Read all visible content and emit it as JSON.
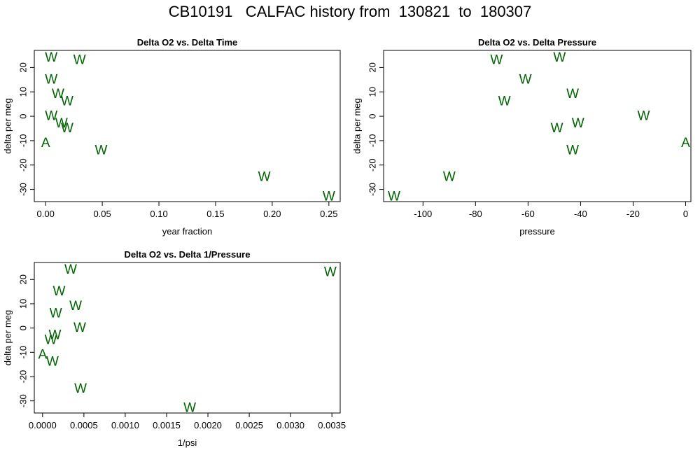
{
  "title": "CB10191   CALFAC history from  130821  to  180307",
  "colors": {
    "marker": "#006400",
    "axis": "#000000"
  },
  "chart_data": [
    {
      "type": "scatter",
      "title": "Delta O2 vs. Delta Time",
      "xlabel": "year fraction",
      "ylabel": "delta per meg",
      "xlim": [
        -0.01,
        0.26
      ],
      "ylim": [
        -35,
        27
      ],
      "xticks": [
        0.0,
        0.05,
        0.1,
        0.15,
        0.2,
        0.25
      ],
      "xtick_labels": [
        "0.00",
        "0.05",
        "0.10",
        "0.15",
        "0.20",
        "0.25"
      ],
      "yticks": [
        -30,
        -20,
        -10,
        0,
        10,
        20
      ],
      "ytick_labels": [
        "-30",
        "-20",
        "-10",
        "0",
        "10",
        "20"
      ],
      "points": [
        {
          "x": 0.0,
          "y": -11,
          "label": "A"
        },
        {
          "x": 0.005,
          "y": 24,
          "label": "W"
        },
        {
          "x": 0.03,
          "y": 23,
          "label": "W"
        },
        {
          "x": 0.005,
          "y": 15,
          "label": "W"
        },
        {
          "x": 0.011,
          "y": 9,
          "label": "W"
        },
        {
          "x": 0.019,
          "y": 6,
          "label": "W"
        },
        {
          "x": 0.005,
          "y": 0,
          "label": "W"
        },
        {
          "x": 0.014,
          "y": -3,
          "label": "W"
        },
        {
          "x": 0.019,
          "y": -5,
          "label": "W"
        },
        {
          "x": 0.049,
          "y": -14,
          "label": "W"
        },
        {
          "x": 0.193,
          "y": -25,
          "label": "W"
        },
        {
          "x": 0.25,
          "y": -33,
          "label": "W"
        }
      ]
    },
    {
      "type": "scatter",
      "title": "Delta O2 vs. Delta Pressure",
      "xlabel": "pressure",
      "ylabel": "delta per meg",
      "xlim": [
        -115,
        2
      ],
      "ylim": [
        -35,
        27
      ],
      "xticks": [
        -100,
        -80,
        -60,
        -40,
        -20,
        0
      ],
      "xtick_labels": [
        "-100",
        "-80",
        "-60",
        "-40",
        "-20",
        "0"
      ],
      "yticks": [
        -30,
        -20,
        -10,
        0,
        10,
        20
      ],
      "ytick_labels": [
        "-30",
        "-20",
        "-10",
        "0",
        "10",
        "20"
      ],
      "points": [
        {
          "x": 0,
          "y": -11,
          "label": "A"
        },
        {
          "x": -72,
          "y": 23,
          "label": "W"
        },
        {
          "x": -48,
          "y": 24,
          "label": "W"
        },
        {
          "x": -61,
          "y": 15,
          "label": "W"
        },
        {
          "x": -43,
          "y": 9,
          "label": "W"
        },
        {
          "x": -69,
          "y": 6,
          "label": "W"
        },
        {
          "x": -16,
          "y": 0,
          "label": "W"
        },
        {
          "x": -41,
          "y": -3,
          "label": "W"
        },
        {
          "x": -49,
          "y": -5,
          "label": "W"
        },
        {
          "x": -43,
          "y": -14,
          "label": "W"
        },
        {
          "x": -90,
          "y": -25,
          "label": "W"
        },
        {
          "x": -111,
          "y": -33,
          "label": "W"
        }
      ]
    },
    {
      "type": "scatter",
      "title": "Delta O2 vs. Delta 1/Pressure",
      "xlabel": "1/psi",
      "ylabel": "delta per meg",
      "xlim": [
        -0.0001,
        0.0036
      ],
      "ylim": [
        -35,
        27
      ],
      "xticks": [
        0.0,
        0.0005,
        0.001,
        0.0015,
        0.002,
        0.0025,
        0.003,
        0.0035
      ],
      "xtick_labels": [
        "0.0000",
        "0.0005",
        "0.0010",
        "0.0015",
        "0.0020",
        "0.0025",
        "0.0030",
        "0.0035"
      ],
      "yticks": [
        -30,
        -20,
        -10,
        0,
        10,
        20
      ],
      "ytick_labels": [
        "-30",
        "-20",
        "-10",
        "0",
        "10",
        "20"
      ],
      "points": [
        {
          "x": 0.0,
          "y": -11,
          "label": "A"
        },
        {
          "x": 0.00034,
          "y": 24,
          "label": "W"
        },
        {
          "x": 0.00348,
          "y": 23,
          "label": "W"
        },
        {
          "x": 0.0002,
          "y": 15,
          "label": "W"
        },
        {
          "x": 0.0004,
          "y": 9,
          "label": "W"
        },
        {
          "x": 0.00016,
          "y": 6,
          "label": "W"
        },
        {
          "x": 0.00045,
          "y": 0,
          "label": "W"
        },
        {
          "x": 0.00015,
          "y": -3,
          "label": "W"
        },
        {
          "x": 0.0001,
          "y": -5,
          "label": "W"
        },
        {
          "x": 0.00012,
          "y": -14,
          "label": "W"
        },
        {
          "x": 0.00046,
          "y": -25,
          "label": "W"
        },
        {
          "x": 0.00178,
          "y": -33,
          "label": "W"
        }
      ]
    }
  ]
}
